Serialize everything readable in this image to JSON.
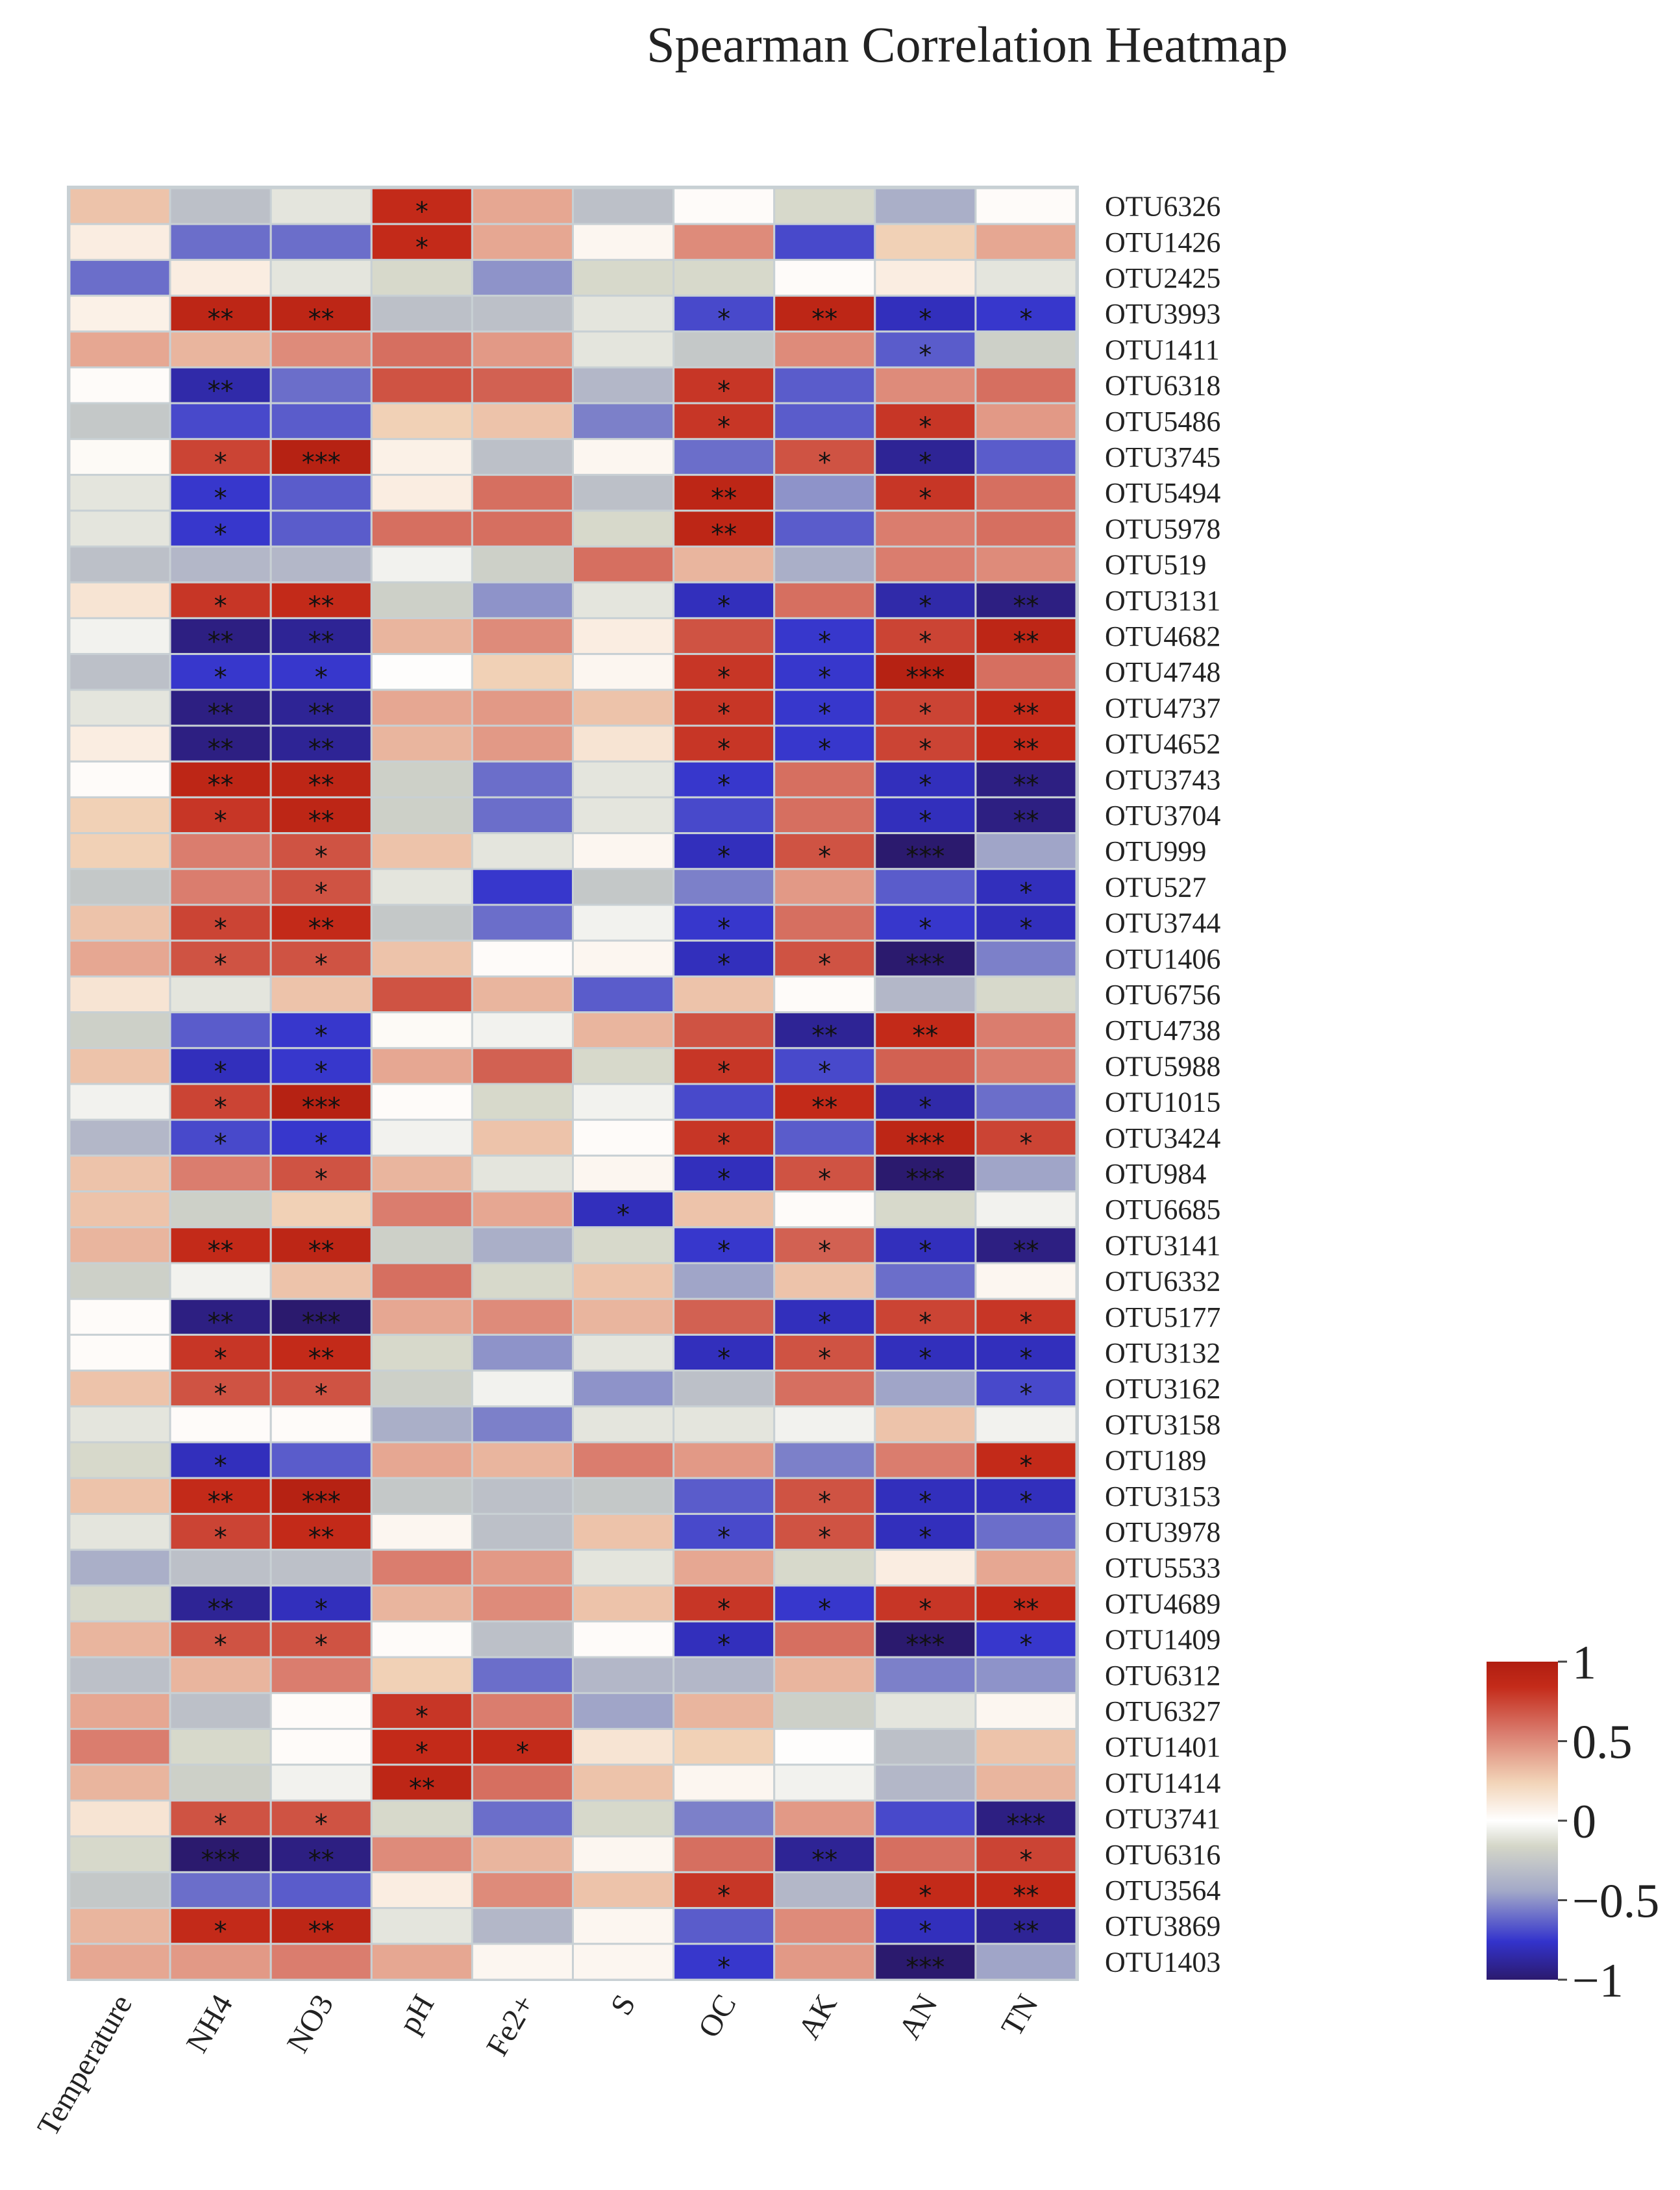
{
  "chart_data": {
    "type": "heatmap",
    "title": "Spearman Correlation Heatmap",
    "columns": [
      "Temperature",
      "NH4",
      "NO3",
      "pH",
      "Fe2+",
      "S",
      "OC",
      "AK",
      "AN",
      "TN"
    ],
    "rows": [
      "OTU6326",
      "OTU1426",
      "OTU2425",
      "OTU3993",
      "OTU1411",
      "OTU6318",
      "OTU5486",
      "OTU3745",
      "OTU5494",
      "OTU5978",
      "OTU519",
      "OTU3131",
      "OTU4682",
      "OTU4748",
      "OTU4737",
      "OTU4652",
      "OTU3743",
      "OTU3704",
      "OTU999",
      "OTU527",
      "OTU3744",
      "OTU1406",
      "OTU6756",
      "OTU4738",
      "OTU5988",
      "OTU1015",
      "OTU3424",
      "OTU984",
      "OTU6685",
      "OTU3141",
      "OTU6332",
      "OTU5177",
      "OTU3132",
      "OTU3162",
      "OTU3158",
      "OTU189",
      "OTU3153",
      "OTU3978",
      "OTU5533",
      "OTU4689",
      "OTU1409",
      "OTU6312",
      "OTU6327",
      "OTU1401",
      "OTU1414",
      "OTU3741",
      "OTU6316",
      "OTU3564",
      "OTU3869",
      "OTU1403"
    ],
    "values": [
      [
        0.3,
        -0.3,
        -0.1,
        0.85,
        0.4,
        -0.3,
        0.02,
        -0.15,
        -0.4,
        0.02
      ],
      [
        0.1,
        -0.6,
        -0.6,
        0.85,
        0.4,
        0.05,
        0.5,
        -0.7,
        0.25,
        0.4
      ],
      [
        -0.6,
        0.1,
        -0.1,
        -0.15,
        -0.5,
        -0.15,
        -0.15,
        0.02,
        0.1,
        -0.1
      ],
      [
        0.08,
        0.9,
        0.9,
        -0.3,
        -0.3,
        -0.1,
        -0.7,
        0.9,
        -0.8,
        -0.75
      ],
      [
        0.4,
        0.35,
        0.5,
        0.6,
        0.45,
        -0.1,
        -0.25,
        0.5,
        -0.65,
        -0.2
      ],
      [
        0.02,
        -0.85,
        -0.6,
        0.7,
        0.65,
        -0.35,
        0.8,
        -0.65,
        0.5,
        0.6
      ],
      [
        -0.25,
        -0.7,
        -0.65,
        0.25,
        0.3,
        -0.55,
        0.8,
        -0.65,
        0.8,
        0.45
      ],
      [
        0.03,
        0.75,
        0.95,
        0.08,
        -0.3,
        0.05,
        -0.6,
        0.7,
        -0.9,
        -0.65
      ],
      [
        -0.1,
        -0.75,
        -0.65,
        0.1,
        0.6,
        -0.3,
        0.9,
        -0.5,
        0.8,
        0.6
      ],
      [
        -0.1,
        -0.75,
        -0.65,
        0.6,
        0.6,
        -0.15,
        0.9,
        -0.65,
        0.55,
        0.6
      ],
      [
        -0.3,
        -0.35,
        -0.35,
        -0.05,
        -0.2,
        0.6,
        0.35,
        -0.4,
        0.55,
        0.5
      ],
      [
        0.15,
        0.8,
        0.85,
        -0.2,
        -0.5,
        -0.1,
        -0.8,
        0.6,
        -0.85,
        -0.95
      ],
      [
        -0.05,
        -0.95,
        -0.9,
        0.35,
        0.5,
        0.1,
        0.7,
        -0.75,
        0.75,
        0.9
      ],
      [
        -0.3,
        -0.75,
        -0.75,
        0.01,
        0.25,
        0.05,
        0.8,
        -0.75,
        0.95,
        0.6
      ],
      [
        -0.1,
        -0.95,
        -0.9,
        0.4,
        0.45,
        0.3,
        0.8,
        -0.75,
        0.75,
        0.85
      ],
      [
        0.1,
        -0.95,
        -0.9,
        0.35,
        0.45,
        0.15,
        0.8,
        -0.75,
        0.75,
        0.85
      ],
      [
        0.02,
        0.9,
        0.9,
        -0.2,
        -0.6,
        -0.1,
        -0.75,
        0.6,
        -0.8,
        -0.95
      ],
      [
        0.25,
        0.8,
        0.9,
        -0.2,
        -0.6,
        -0.1,
        -0.7,
        0.6,
        -0.8,
        -0.95
      ],
      [
        0.25,
        0.55,
        0.7,
        0.3,
        -0.1,
        0.05,
        -0.8,
        0.7,
        -1.0,
        -0.45
      ],
      [
        -0.25,
        0.55,
        0.7,
        -0.1,
        -0.75,
        -0.25,
        -0.55,
        0.45,
        -0.65,
        -0.8
      ],
      [
        0.3,
        0.75,
        0.85,
        -0.25,
        -0.6,
        -0.05,
        -0.75,
        0.6,
        -0.75,
        -0.8
      ],
      [
        0.4,
        0.7,
        0.7,
        0.3,
        0.02,
        0.05,
        -0.8,
        0.7,
        -1.0,
        -0.55
      ],
      [
        0.15,
        -0.1,
        0.3,
        0.7,
        0.35,
        -0.65,
        0.3,
        0.02,
        -0.35,
        -0.15
      ],
      [
        -0.2,
        -0.65,
        -0.75,
        0.03,
        -0.05,
        0.35,
        0.7,
        -0.9,
        0.85,
        0.55
      ],
      [
        0.3,
        -0.8,
        -0.75,
        0.4,
        0.65,
        -0.15,
        0.8,
        -0.7,
        0.65,
        0.55
      ],
      [
        -0.05,
        0.75,
        0.95,
        0.02,
        -0.15,
        -0.05,
        -0.7,
        0.85,
        -0.85,
        -0.6
      ],
      [
        -0.35,
        -0.7,
        -0.75,
        -0.05,
        0.3,
        0.02,
        0.8,
        -0.65,
        0.9,
        0.75
      ],
      [
        0.3,
        0.55,
        0.7,
        0.35,
        -0.1,
        0.05,
        -0.8,
        0.7,
        -1.0,
        -0.45
      ],
      [
        0.3,
        -0.2,
        0.25,
        0.55,
        0.4,
        -0.8,
        0.3,
        0.02,
        -0.15,
        -0.05
      ],
      [
        0.35,
        0.85,
        0.9,
        -0.2,
        -0.4,
        -0.15,
        -0.75,
        0.65,
        -0.8,
        -0.95
      ],
      [
        -0.2,
        -0.05,
        0.3,
        0.6,
        -0.15,
        0.3,
        -0.45,
        0.3,
        -0.6,
        0.05
      ],
      [
        0.02,
        -0.95,
        -1.0,
        0.4,
        0.5,
        0.35,
        0.65,
        -0.8,
        0.75,
        0.8
      ],
      [
        0.02,
        0.8,
        0.85,
        -0.15,
        -0.5,
        -0.1,
        -0.8,
        0.7,
        -0.8,
        -0.8
      ],
      [
        0.3,
        0.7,
        0.7,
        -0.2,
        -0.05,
        -0.5,
        -0.3,
        0.6,
        -0.45,
        -0.7
      ],
      [
        -0.1,
        0.02,
        0.02,
        -0.4,
        -0.55,
        -0.1,
        -0.1,
        -0.05,
        0.3,
        -0.05
      ],
      [
        -0.15,
        -0.8,
        -0.65,
        0.4,
        0.35,
        0.55,
        0.45,
        -0.55,
        0.55,
        0.85
      ],
      [
        0.3,
        0.85,
        0.95,
        -0.25,
        -0.3,
        -0.25,
        -0.65,
        0.7,
        -0.8,
        -0.8
      ],
      [
        -0.1,
        0.75,
        0.85,
        0.05,
        -0.3,
        0.3,
        -0.7,
        0.7,
        -0.8,
        -0.6
      ],
      [
        -0.4,
        -0.3,
        -0.3,
        0.55,
        0.45,
        -0.1,
        0.4,
        -0.15,
        0.1,
        0.4
      ],
      [
        -0.15,
        -0.9,
        -0.8,
        0.35,
        0.5,
        0.3,
        0.8,
        -0.75,
        0.8,
        0.85
      ],
      [
        0.35,
        0.7,
        0.7,
        0.02,
        -0.3,
        0.02,
        -0.8,
        0.6,
        -1.0,
        -0.75
      ],
      [
        -0.3,
        0.35,
        0.55,
        0.25,
        -0.6,
        -0.35,
        -0.35,
        0.35,
        -0.55,
        -0.5
      ],
      [
        0.4,
        -0.3,
        0.02,
        0.8,
        0.55,
        -0.45,
        0.35,
        -0.2,
        -0.1,
        0.05
      ],
      [
        0.55,
        -0.15,
        0.02,
        0.85,
        0.85,
        0.15,
        0.25,
        0.01,
        -0.3,
        0.3
      ],
      [
        0.35,
        -0.2,
        -0.05,
        0.9,
        0.6,
        0.3,
        0.05,
        -0.05,
        -0.35,
        0.35
      ],
      [
        0.15,
        0.7,
        0.7,
        -0.15,
        -0.6,
        -0.15,
        -0.55,
        0.45,
        -0.7,
        -0.95
      ],
      [
        -0.15,
        -1.0,
        -0.95,
        0.5,
        0.35,
        0.05,
        0.6,
        -0.9,
        0.6,
        0.75
      ],
      [
        -0.25,
        -0.6,
        -0.65,
        0.1,
        0.5,
        0.3,
        0.8,
        -0.35,
        0.85,
        0.85
      ],
      [
        0.35,
        0.85,
        0.9,
        -0.1,
        -0.35,
        0.05,
        -0.65,
        0.5,
        -0.8,
        -0.9
      ],
      [
        0.4,
        0.45,
        0.55,
        0.4,
        0.05,
        0.05,
        -0.75,
        0.45,
        -1.0,
        -0.45
      ]
    ],
    "significance": [
      [
        "",
        "",
        "",
        "*",
        "",
        "",
        "",
        "",
        "",
        ""
      ],
      [
        "",
        "",
        "",
        "*",
        "",
        "",
        "",
        "",
        "",
        ""
      ],
      [
        "",
        "",
        "",
        "",
        "",
        "",
        "",
        "",
        "",
        ""
      ],
      [
        "",
        "**",
        "**",
        "",
        "",
        "",
        "*",
        "**",
        "*",
        "*"
      ],
      [
        "",
        "",
        "",
        "",
        "",
        "",
        "",
        "",
        "*",
        ""
      ],
      [
        "",
        "**",
        "",
        "",
        "",
        "",
        "*",
        "",
        "",
        ""
      ],
      [
        "",
        "",
        "",
        "",
        "",
        "",
        "*",
        "",
        "*",
        ""
      ],
      [
        "",
        "*",
        "***",
        "",
        "",
        "",
        "",
        "*",
        "*",
        ""
      ],
      [
        "",
        "*",
        "",
        "",
        "",
        "",
        "**",
        "",
        "*",
        ""
      ],
      [
        "",
        "*",
        "",
        "",
        "",
        "",
        "**",
        "",
        "",
        ""
      ],
      [
        "",
        "",
        "",
        "",
        "",
        "",
        "",
        "",
        "",
        ""
      ],
      [
        "",
        "*",
        "**",
        "",
        "",
        "",
        "*",
        "",
        "*",
        "**"
      ],
      [
        "",
        "**",
        "**",
        "",
        "",
        "",
        "",
        "*",
        "*",
        "**"
      ],
      [
        "",
        "*",
        "*",
        "",
        "",
        "",
        "*",
        "*",
        "***",
        ""
      ],
      [
        "",
        "**",
        "**",
        "",
        "",
        "",
        "*",
        "*",
        "*",
        "**"
      ],
      [
        "",
        "**",
        "**",
        "",
        "",
        "",
        "*",
        "*",
        "*",
        "**"
      ],
      [
        "",
        "**",
        "**",
        "",
        "",
        "",
        "*",
        "",
        "*",
        "**"
      ],
      [
        "",
        "*",
        "**",
        "",
        "",
        "",
        "",
        "",
        "*",
        "**"
      ],
      [
        "",
        "",
        "*",
        "",
        "",
        "",
        "*",
        "*",
        "***",
        ""
      ],
      [
        "",
        "",
        "*",
        "",
        "",
        "",
        "",
        "",
        "",
        "*"
      ],
      [
        "",
        "*",
        "**",
        "",
        "",
        "",
        "*",
        "",
        "*",
        "*"
      ],
      [
        "",
        "*",
        "*",
        "",
        "",
        "",
        "*",
        "*",
        "***",
        ""
      ],
      [
        "",
        "",
        "",
        "",
        "",
        "",
        "",
        "",
        "",
        ""
      ],
      [
        "",
        "",
        "*",
        "",
        "",
        "",
        "",
        "**",
        "**",
        ""
      ],
      [
        "",
        "*",
        "*",
        "",
        "",
        "",
        "*",
        "*",
        "",
        ""
      ],
      [
        "",
        "*",
        "***",
        "",
        "",
        "",
        "",
        "**",
        "*",
        ""
      ],
      [
        "",
        "*",
        "*",
        "",
        "",
        "",
        "*",
        "",
        "***",
        "*"
      ],
      [
        "",
        "",
        "*",
        "",
        "",
        "",
        "*",
        "*",
        "***",
        ""
      ],
      [
        "",
        "",
        "",
        "",
        "",
        "*",
        "",
        "",
        "",
        ""
      ],
      [
        "",
        "**",
        "**",
        "",
        "",
        "",
        "*",
        "*",
        "*",
        "**"
      ],
      [
        "",
        "",
        "",
        "",
        "",
        "",
        "",
        "",
        "",
        ""
      ],
      [
        "",
        "**",
        "***",
        "",
        "",
        "",
        "",
        "*",
        "*",
        "*"
      ],
      [
        "",
        "*",
        "**",
        "",
        "",
        "",
        "*",
        "*",
        "*",
        "*"
      ],
      [
        "",
        "*",
        "*",
        "",
        "",
        "",
        "",
        "",
        "",
        "*"
      ],
      [
        "",
        "",
        "",
        "",
        "",
        "",
        "",
        "",
        "",
        ""
      ],
      [
        "",
        "*",
        "",
        "",
        "",
        "",
        "",
        "",
        "",
        "*"
      ],
      [
        "",
        "**",
        "***",
        "",
        "",
        "",
        "",
        "*",
        "*",
        "*"
      ],
      [
        "",
        "*",
        "**",
        "",
        "",
        "",
        "*",
        "*",
        "*",
        ""
      ],
      [
        "",
        "",
        "",
        "",
        "",
        "",
        "",
        "",
        "",
        ""
      ],
      [
        "",
        "**",
        "*",
        "",
        "",
        "",
        "*",
        "*",
        "*",
        "**"
      ],
      [
        "",
        "*",
        "*",
        "",
        "",
        "",
        "*",
        "",
        "***",
        "*"
      ],
      [
        "",
        "",
        "",
        "",
        "",
        "",
        "",
        "",
        "",
        ""
      ],
      [
        "",
        "",
        "",
        "*",
        "",
        "",
        "",
        "",
        "",
        ""
      ],
      [
        "",
        "",
        "",
        "*",
        "*",
        "",
        "",
        "",
        "",
        ""
      ],
      [
        "",
        "",
        "",
        "**",
        "",
        "",
        "",
        "",
        "",
        ""
      ],
      [
        "",
        "*",
        "*",
        "",
        "",
        "",
        "",
        "",
        "",
        "***"
      ],
      [
        "",
        "***",
        "**",
        "",
        "",
        "",
        "",
        "**",
        "",
        "*"
      ],
      [
        "",
        "",
        "",
        "",
        "",
        "",
        "*",
        "",
        "*",
        "**"
      ],
      [
        "",
        "*",
        "**",
        "",
        "",
        "",
        "",
        "",
        "*",
        "**"
      ],
      [
        "",
        "",
        "",
        "",
        "",
        "",
        "*",
        "",
        "***",
        ""
      ]
    ],
    "colorbar": {
      "min": -1,
      "max": 1,
      "ticks": [
        "1",
        "0.5",
        "0",
        "−0.5",
        "−1"
      ]
    },
    "colors": {
      "min": "#2b1a6e",
      "low": "#3333cc",
      "mid_low": "#a3a9c8",
      "neutral_low": "#d4d6c8",
      "zero": "#ffffff",
      "neutral_high": "#f2d4b8",
      "mid_high": "#d97a6c",
      "high": "#c42b1a",
      "max": "#b01e10",
      "grid": "#c8d0d4"
    }
  }
}
